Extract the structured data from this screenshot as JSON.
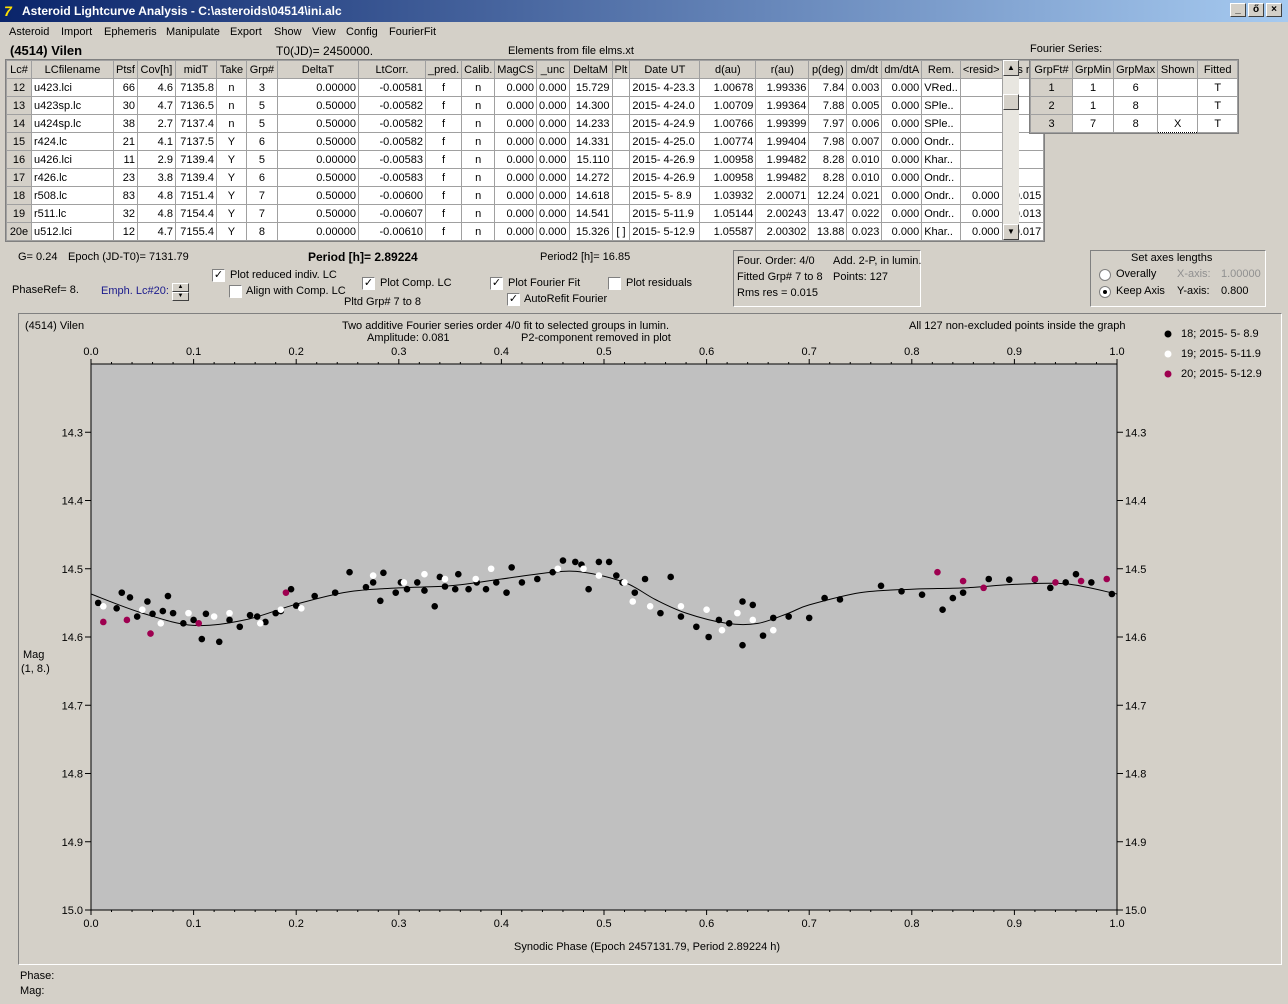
{
  "window": {
    "title": "Asteroid Lightcurve Analysis - C:\\asteroids\\04514\\ini.alc",
    "buttons": [
      "_",
      "ő",
      "×"
    ]
  },
  "menu": [
    "Asteroid",
    "Import",
    "Ephemeris",
    "Manipulate",
    "Export",
    "Show",
    "View",
    "Config",
    "FourierFit"
  ],
  "header": {
    "asteroid": "(4514) Vilen",
    "t0": "T0(JD)= 2450000.",
    "elements": "Elements from file elms.xt"
  },
  "table": {
    "columns": [
      "Lc#",
      "LCfilename",
      "Ptsf",
      "Cov[h]",
      "midT",
      "Take",
      "Grp#",
      "DeltaT",
      "LtCorr.",
      "_pred.",
      "Calib.",
      "MagCS",
      "_unc",
      "DeltaM",
      "Plt",
      "Date UT",
      "d(au)",
      "r(au)",
      "p(deg)",
      "dm/dt",
      "dm/dtA",
      "Rem.",
      "<resid>",
      "rms res"
    ],
    "rows": [
      [
        "12",
        "u423.lci",
        "66",
        "4.6",
        "7135.8",
        "n",
        "3",
        "0.00000",
        "-0.00581",
        "f",
        "n",
        "0.000",
        "0.000",
        "15.729",
        "",
        "2015- 4-23.3",
        "1.00678",
        "1.99336",
        "7.84",
        "0.003",
        "0.000",
        "VRed..",
        "",
        ""
      ],
      [
        "13",
        "u423sp.lc",
        "30",
        "4.7",
        "7136.5",
        "n",
        "5",
        "0.50000",
        "-0.00582",
        "f",
        "n",
        "0.000",
        "0.000",
        "14.300",
        "",
        "2015- 4-24.0",
        "1.00709",
        "1.99364",
        "7.88",
        "0.005",
        "0.000",
        "SPle..",
        "",
        ""
      ],
      [
        "14",
        "u424sp.lc",
        "38",
        "2.7",
        "7137.4",
        "n",
        "5",
        "0.50000",
        "-0.00582",
        "f",
        "n",
        "0.000",
        "0.000",
        "14.233",
        "",
        "2015- 4-24.9",
        "1.00766",
        "1.99399",
        "7.97",
        "0.006",
        "0.000",
        "SPle..",
        "",
        ""
      ],
      [
        "15",
        "r424.lc",
        "21",
        "4.1",
        "7137.5",
        "Y",
        "6",
        "0.50000",
        "-0.00582",
        "f",
        "n",
        "0.000",
        "0.000",
        "14.331",
        "",
        "2015- 4-25.0",
        "1.00774",
        "1.99404",
        "7.98",
        "0.007",
        "0.000",
        "Ondr..",
        "",
        ""
      ],
      [
        "16",
        "u426.lci",
        "11",
        "2.9",
        "7139.4",
        "Y",
        "5",
        "0.00000",
        "-0.00583",
        "f",
        "n",
        "0.000",
        "0.000",
        "15.110",
        "",
        "2015- 4-26.9",
        "1.00958",
        "1.99482",
        "8.28",
        "0.010",
        "0.000",
        "Khar..",
        "",
        ""
      ],
      [
        "17",
        "r426.lc",
        "23",
        "3.8",
        "7139.4",
        "Y",
        "6",
        "0.50000",
        "-0.00583",
        "f",
        "n",
        "0.000",
        "0.000",
        "14.272",
        "",
        "2015- 4-26.9",
        "1.00958",
        "1.99482",
        "8.28",
        "0.010",
        "0.000",
        "Ondr..",
        "",
        ""
      ],
      [
        "18",
        "r508.lc",
        "83",
        "4.8",
        "7151.4",
        "Y",
        "7",
        "0.50000",
        "-0.00600",
        "f",
        "n",
        "0.000",
        "0.000",
        "14.618",
        "",
        "2015- 5- 8.9",
        "1.03932",
        "2.00071",
        "12.24",
        "0.021",
        "0.000",
        "Ondr..",
        "0.000",
        "0.015"
      ],
      [
        "19",
        "r511.lc",
        "32",
        "4.8",
        "7154.4",
        "Y",
        "7",
        "0.50000",
        "-0.00607",
        "f",
        "n",
        "0.000",
        "0.000",
        "14.541",
        "",
        "2015- 5-11.9",
        "1.05144",
        "2.00243",
        "13.47",
        "0.022",
        "0.000",
        "Ondr..",
        "0.000",
        "0.013"
      ],
      [
        "20e",
        "u512.lci",
        "12",
        "4.7",
        "7155.4",
        "Y",
        "8",
        "0.00000",
        "-0.00610",
        "f",
        "n",
        "0.000",
        "0.000",
        "15.326",
        "[ ]",
        "2015- 5-12.9",
        "1.05587",
        "2.00302",
        "13.88",
        "0.023",
        "0.000",
        "Khar..",
        "0.000",
        "0.017"
      ]
    ]
  },
  "fourier": {
    "title": "Fourier Series:",
    "columns": [
      "GrpFt#",
      "GrpMin",
      "GrpMax",
      "Shown",
      "Fitted"
    ],
    "rows": [
      [
        "1",
        "1",
        "6",
        "",
        "T"
      ],
      [
        "2",
        "1",
        "8",
        "",
        "T"
      ],
      [
        "3",
        "7",
        "8",
        "X",
        "T"
      ]
    ]
  },
  "controls": {
    "g": "G= 0.24",
    "epoch": "Epoch (JD-T0)= 7131.79",
    "period": "Period [h]= 2.89224",
    "period2": "Period2 [h]= 16.85",
    "phaseref": "PhaseRef= 8.",
    "emph": "Emph. Lc#20:",
    "plot_reduced": "Plot reduced indiv. LC",
    "align_comp": "Align with Comp. LC",
    "plot_comp": "Plot Comp. LC",
    "pltd_grp": "Pltd Grp#  7   to   8",
    "plot_fourier": "Plot Fourier Fit",
    "autorefit": "AutoRefit Fourier",
    "plot_resid": "Plot residuals",
    "check_plot_reduced": "✓",
    "check_plot_comp": "✓",
    "check_plot_fourier": "✓",
    "check_autorefit": "✓"
  },
  "info": {
    "four_order": "Four. Order:  4/0",
    "add": "Add. 2-P, in lumin.",
    "fitted": "Fitted Grp# 7 to 8",
    "points": "Points: 127",
    "rms": "Rms res     = 0.015"
  },
  "axes": {
    "title": "Set axes lengths",
    "overally": "Overally",
    "keep": "Keep Axis",
    "xaxis_label": "X-axis:",
    "xaxis_value": "1.00000",
    "yaxis_label": "Y-axis:",
    "yaxis_value": "0.800"
  },
  "plot": {
    "name": "(4514) Vilen",
    "title1": "Two additive Fourier series order 4/0 fit to selected groups in lumin.",
    "title2": "Amplitude: 0.081",
    "title3": "P2-component removed in plot",
    "note": "All 127 non-excluded points inside the graph",
    "ylabel1": "Mag",
    "ylabel2": "(1, 8.)",
    "xlabel": "Synodic Phase (Epoch 2457131.79, Period 2.89224 h)",
    "bg": "#c0c0c0",
    "legend": [
      {
        "label": "18; 2015- 5- 8.9",
        "color": "#000000"
      },
      {
        "label": "19; 2015- 5-11.9",
        "color": "#ffffff"
      },
      {
        "label": "20; 2015- 5-12.9",
        "color": "#9e0050"
      }
    ]
  },
  "chart_data": {
    "type": "scatter",
    "xlim": [
      0,
      1
    ],
    "ylim": [
      15.0,
      14.2
    ],
    "xticks": [
      "0.0",
      "0.1",
      "0.2",
      "0.3",
      "0.4",
      "0.5",
      "0.6",
      "0.7",
      "0.8",
      "0.9",
      "1.0"
    ],
    "yticks": [
      "14.3",
      "14.4",
      "14.5",
      "14.6",
      "14.7",
      "14.8",
      "14.9",
      "15.0"
    ],
    "series": [
      {
        "name": "18; 2015- 5- 8.9",
        "color": "#000000",
        "points": [
          [
            0.007,
            14.55
          ],
          [
            0.025,
            14.558
          ],
          [
            0.03,
            14.535
          ],
          [
            0.038,
            14.542
          ],
          [
            0.045,
            14.57
          ],
          [
            0.055,
            14.548
          ],
          [
            0.06,
            14.566
          ],
          [
            0.07,
            14.562
          ],
          [
            0.075,
            14.54
          ],
          [
            0.08,
            14.565
          ],
          [
            0.09,
            14.58
          ],
          [
            0.1,
            14.575
          ],
          [
            0.108,
            14.603
          ],
          [
            0.112,
            14.566
          ],
          [
            0.125,
            14.607
          ],
          [
            0.135,
            14.575
          ],
          [
            0.145,
            14.585
          ],
          [
            0.155,
            14.568
          ],
          [
            0.162,
            14.57
          ],
          [
            0.17,
            14.578
          ],
          [
            0.18,
            14.565
          ],
          [
            0.185,
            14.562
          ],
          [
            0.195,
            14.53
          ],
          [
            0.2,
            14.554
          ],
          [
            0.218,
            14.54
          ],
          [
            0.238,
            14.535
          ],
          [
            0.252,
            14.505
          ],
          [
            0.268,
            14.527
          ],
          [
            0.275,
            14.52
          ],
          [
            0.282,
            14.547
          ],
          [
            0.285,
            14.506
          ],
          [
            0.297,
            14.535
          ],
          [
            0.302,
            14.52
          ],
          [
            0.308,
            14.53
          ],
          [
            0.318,
            14.52
          ],
          [
            0.325,
            14.532
          ],
          [
            0.335,
            14.555
          ],
          [
            0.34,
            14.512
          ],
          [
            0.345,
            14.526
          ],
          [
            0.355,
            14.53
          ],
          [
            0.358,
            14.508
          ],
          [
            0.368,
            14.53
          ],
          [
            0.376,
            14.52
          ],
          [
            0.385,
            14.53
          ],
          [
            0.395,
            14.52
          ],
          [
            0.405,
            14.535
          ],
          [
            0.41,
            14.498
          ],
          [
            0.42,
            14.52
          ],
          [
            0.435,
            14.515
          ],
          [
            0.45,
            14.505
          ],
          [
            0.46,
            14.488
          ],
          [
            0.472,
            14.49
          ],
          [
            0.478,
            14.494
          ],
          [
            0.485,
            14.53
          ],
          [
            0.495,
            14.49
          ],
          [
            0.505,
            14.49
          ],
          [
            0.512,
            14.51
          ],
          [
            0.518,
            14.52
          ],
          [
            0.53,
            14.535
          ],
          [
            0.54,
            14.515
          ],
          [
            0.555,
            14.565
          ],
          [
            0.565,
            14.512
          ],
          [
            0.575,
            14.57
          ],
          [
            0.59,
            14.585
          ],
          [
            0.602,
            14.6
          ],
          [
            0.612,
            14.575
          ],
          [
            0.622,
            14.58
          ],
          [
            0.635,
            14.612
          ],
          [
            0.635,
            14.548
          ],
          [
            0.645,
            14.553
          ],
          [
            0.655,
            14.598
          ],
          [
            0.665,
            14.572
          ],
          [
            0.68,
            14.57
          ],
          [
            0.7,
            14.572
          ],
          [
            0.715,
            14.543
          ],
          [
            0.73,
            14.545
          ],
          [
            0.77,
            14.525
          ],
          [
            0.79,
            14.533
          ],
          [
            0.81,
            14.538
          ],
          [
            0.83,
            14.56
          ],
          [
            0.84,
            14.543
          ],
          [
            0.85,
            14.535
          ],
          [
            0.875,
            14.515
          ],
          [
            0.895,
            14.516
          ],
          [
            0.92,
            14.516
          ],
          [
            0.935,
            14.528
          ],
          [
            0.95,
            14.52
          ],
          [
            0.96,
            14.508
          ],
          [
            0.975,
            14.52
          ],
          [
            0.995,
            14.537
          ]
        ]
      },
      {
        "name": "19; 2015- 5-11.9",
        "color": "#ffffff",
        "points": [
          [
            0.012,
            14.555
          ],
          [
            0.05,
            14.56
          ],
          [
            0.068,
            14.58
          ],
          [
            0.095,
            14.565
          ],
          [
            0.12,
            14.57
          ],
          [
            0.135,
            14.565
          ],
          [
            0.165,
            14.58
          ],
          [
            0.185,
            14.56
          ],
          [
            0.205,
            14.558
          ],
          [
            0.275,
            14.51
          ],
          [
            0.305,
            14.52
          ],
          [
            0.325,
            14.508
          ],
          [
            0.345,
            14.515
          ],
          [
            0.375,
            14.515
          ],
          [
            0.39,
            14.5
          ],
          [
            0.455,
            14.5
          ],
          [
            0.48,
            14.5
          ],
          [
            0.495,
            14.51
          ],
          [
            0.52,
            14.52
          ],
          [
            0.528,
            14.548
          ],
          [
            0.545,
            14.555
          ],
          [
            0.575,
            14.555
          ],
          [
            0.6,
            14.56
          ],
          [
            0.615,
            14.59
          ],
          [
            0.63,
            14.565
          ],
          [
            0.645,
            14.575
          ],
          [
            0.665,
            14.59
          ]
        ]
      },
      {
        "name": "20; 2015- 5-12.9",
        "color": "#9e0050",
        "points": [
          [
            0.012,
            14.578
          ],
          [
            0.035,
            14.575
          ],
          [
            0.058,
            14.595
          ],
          [
            0.105,
            14.58
          ],
          [
            0.19,
            14.535
          ],
          [
            0.825,
            14.505
          ],
          [
            0.85,
            14.518
          ],
          [
            0.87,
            14.528
          ],
          [
            0.92,
            14.515
          ],
          [
            0.94,
            14.52
          ],
          [
            0.965,
            14.518
          ],
          [
            0.99,
            14.515
          ]
        ]
      }
    ],
    "fit_curve": [
      [
        0.0,
        14.537
      ],
      [
        0.05,
        14.565
      ],
      [
        0.1,
        14.583
      ],
      [
        0.15,
        14.575
      ],
      [
        0.2,
        14.552
      ],
      [
        0.25,
        14.534
      ],
      [
        0.3,
        14.528
      ],
      [
        0.35,
        14.525
      ],
      [
        0.4,
        14.515
      ],
      [
        0.45,
        14.505
      ],
      [
        0.48,
        14.505
      ],
      [
        0.52,
        14.52
      ],
      [
        0.55,
        14.545
      ],
      [
        0.58,
        14.565
      ],
      [
        0.62,
        14.58
      ],
      [
        0.65,
        14.58
      ],
      [
        0.68,
        14.565
      ],
      [
        0.7,
        14.553
      ],
      [
        0.75,
        14.535
      ],
      [
        0.8,
        14.53
      ],
      [
        0.85,
        14.528
      ],
      [
        0.9,
        14.523
      ],
      [
        0.95,
        14.522
      ],
      [
        1.0,
        14.537
      ]
    ]
  },
  "status": {
    "phase": "Phase:",
    "mag": "Mag:"
  }
}
